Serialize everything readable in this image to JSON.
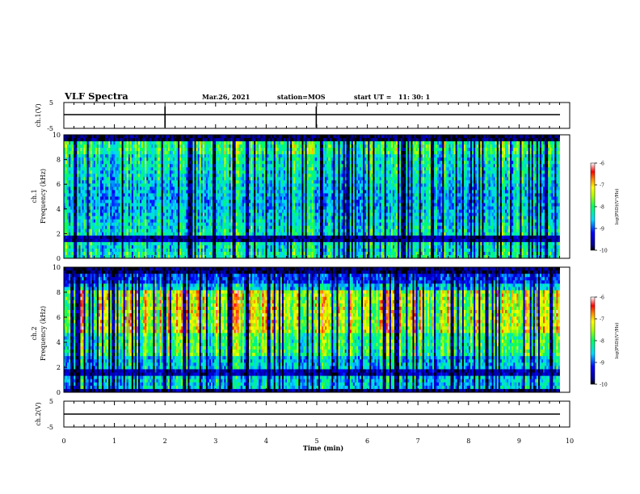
{
  "header": {
    "title": "VLF Spectra",
    "date": "Mar.26, 2021",
    "station": "station=MOS",
    "start_ut": "start UT =   11: 30: 1"
  },
  "chart_data": [
    {
      "type": "line",
      "ylabel": "ch.1(V)",
      "ylim": [
        -5,
        5
      ],
      "yticks": [
        "5",
        "-5"
      ],
      "xlim": [
        0,
        10
      ]
    },
    {
      "type": "heatmap",
      "ylabel_top": "ch.1",
      "ylabel": "Frequency (kHz)",
      "ylim": [
        0,
        10
      ],
      "yticks": [
        "0",
        "2",
        "4",
        "6",
        "8",
        "10"
      ],
      "xlim": [
        0,
        10
      ],
      "data_end_min": 9.8,
      "colorbar": {
        "label": "log(PSD)(V²/Hz)",
        "range": [
          -10,
          -6
        ],
        "ticks": [
          "-6",
          "-7",
          "-8",
          "-9",
          "-10"
        ]
      }
    },
    {
      "type": "heatmap",
      "ylabel_top": "ch.2",
      "ylabel": "Frequency (kHz)",
      "ylim": [
        0,
        10
      ],
      "yticks": [
        "0",
        "2",
        "4",
        "6",
        "8",
        "10"
      ],
      "xlim": [
        0,
        10
      ],
      "data_end_min": 9.8,
      "colorbar": {
        "label": "log(PSD)(V²/Hz)",
        "range": [
          -10,
          -6
        ],
        "ticks": [
          "-6",
          "-7",
          "-8",
          "-9",
          "-10"
        ]
      }
    },
    {
      "type": "line",
      "ylabel": "ch.2(V)",
      "ylim": [
        -5,
        5
      ],
      "yticks": [
        "5",
        "-5"
      ],
      "xlim": [
        0,
        10
      ]
    }
  ],
  "xaxis": {
    "label": "Time (min)",
    "ticks": [
      "0",
      "1",
      "2",
      "3",
      "4",
      "5",
      "6",
      "7",
      "8",
      "9",
      "10"
    ]
  }
}
